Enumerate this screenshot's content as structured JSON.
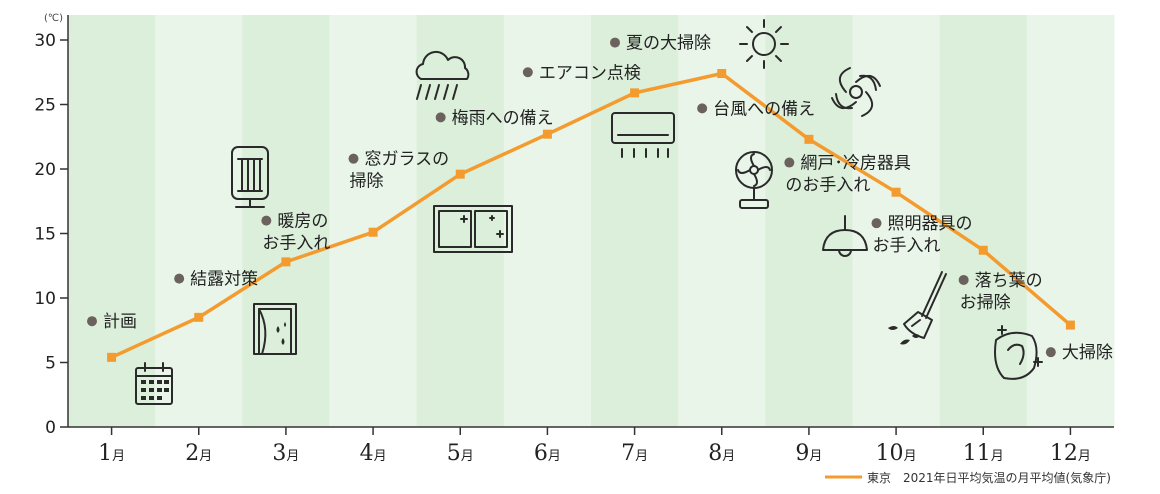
{
  "chart_data": {
    "type": "line",
    "categories": [
      "1月",
      "2月",
      "3月",
      "4月",
      "5月",
      "6月",
      "7月",
      "8月",
      "9月",
      "10月",
      "11月",
      "12月"
    ],
    "month_numbers": [
      "1",
      "2",
      "3",
      "4",
      "5",
      "6",
      "7",
      "8",
      "9",
      "10",
      "11",
      "12"
    ],
    "month_suffix": "月",
    "series": [
      {
        "name": "東京　2021年日平均気温の月平均値(気象庁)",
        "values": [
          5.4,
          8.5,
          12.8,
          15.1,
          19.6,
          22.7,
          25.9,
          27.4,
          22.3,
          18.2,
          13.7,
          7.9
        ],
        "color": "#f39b2f"
      }
    ],
    "y_unit": "(℃)",
    "ylim": [
      0,
      30
    ],
    "yticks": [
      0,
      5,
      10,
      15,
      20,
      25,
      30
    ],
    "legend_label": "東京　2021年日平均気温の月平均値(気象庁)",
    "legend_position": "bottom-right",
    "band_colors": [
      "#dcefdb",
      "#eaf5e9"
    ],
    "annotations": [
      {
        "month": 1,
        "y": 8.2,
        "lines": [
          "計画"
        ],
        "icon": "calendar-icon"
      },
      {
        "month": 2,
        "y": 11.5,
        "lines": [
          "結露対策"
        ],
        "icon": "window-condensation-icon"
      },
      {
        "month": 3,
        "y": 16.0,
        "lines": [
          "暖房の",
          "お手入れ"
        ],
        "icon": "heater-icon"
      },
      {
        "month": 4,
        "y": 20.8,
        "lines": [
          "窓ガラスの",
          "掃除"
        ],
        "icon": "window-icon"
      },
      {
        "month": 5,
        "y": 24.0,
        "lines": [
          "梅雨への備え"
        ],
        "icon": "rain-cloud-icon"
      },
      {
        "month": 6,
        "y": 27.5,
        "lines": [
          "エアコン点検"
        ],
        "icon": "air-conditioner-icon"
      },
      {
        "month": 7,
        "y": 29.8,
        "lines": [
          "夏の大掃除"
        ],
        "icon": "sun-icon"
      },
      {
        "month": 8,
        "y": 24.7,
        "lines": [
          "台風への備え"
        ],
        "icon": "typhoon-icon"
      },
      {
        "month": 9,
        "y": 20.5,
        "lines": [
          "網戸･冷房器具",
          "のお手入れ"
        ],
        "icon": "fan-icon"
      },
      {
        "month": 10,
        "y": 15.8,
        "lines": [
          "照明器具の",
          "お手入れ"
        ],
        "icon": "ceiling-light-icon"
      },
      {
        "month": 11,
        "y": 11.4,
        "lines": [
          "落ち葉の",
          "お掃除"
        ],
        "icon": "broom-icon"
      },
      {
        "month": 12,
        "y": 5.8,
        "lines": [
          "大掃除"
        ],
        "icon": "cleaning-cloth-icon"
      }
    ]
  }
}
